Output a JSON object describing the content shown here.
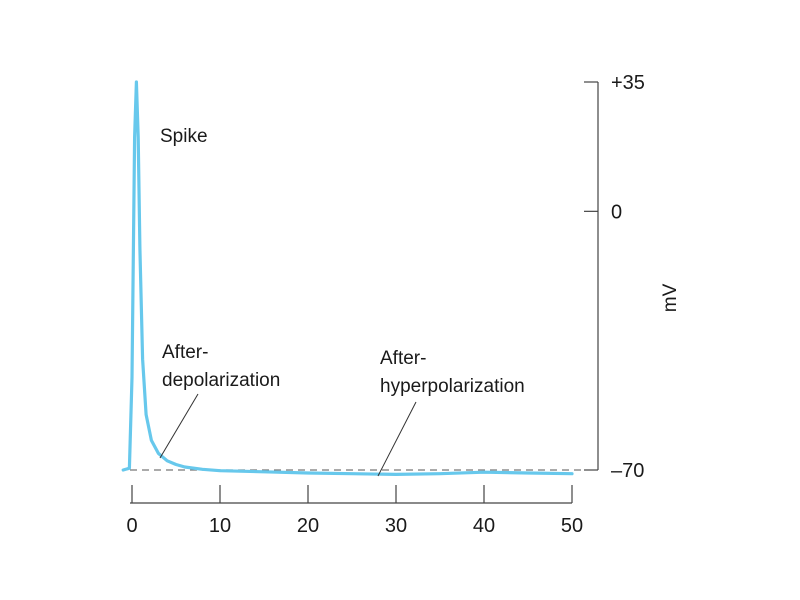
{
  "chart_data": {
    "type": "line",
    "title": "",
    "xlabel": "",
    "ylabel": "mV",
    "xlim": [
      0,
      50
    ],
    "ylim": [
      -70,
      35
    ],
    "x_ticks": [
      0,
      10,
      20,
      30,
      40,
      50
    ],
    "y_ticks": [
      {
        "value": 35,
        "label": "+35"
      },
      {
        "value": 0,
        "label": "0"
      },
      {
        "value": -70,
        "label": "–70"
      }
    ],
    "baseline": {
      "value": -70,
      "style": "dashed"
    },
    "series": [
      {
        "color": "#67c8ec",
        "x": [
          -1,
          -0.3,
          0,
          0.3,
          0.5,
          0.7,
          0.9,
          1.2,
          1.6,
          2.2,
          3,
          4,
          5,
          6,
          8,
          10,
          15,
          20,
          25,
          30,
          35,
          40,
          45,
          50
        ],
        "y": [
          -70,
          -69.5,
          -45,
          20,
          35,
          20,
          -10,
          -40,
          -55,
          -62,
          -65.5,
          -67.5,
          -68.5,
          -69.2,
          -69.8,
          -70.2,
          -70.5,
          -70.8,
          -71,
          -71.2,
          -71,
          -70.6,
          -70.8,
          -71
        ]
      }
    ],
    "annotations": [
      {
        "text": "Spike"
      },
      {
        "lines": [
          "After-",
          "depolarization"
        ]
      },
      {
        "lines": [
          "After-",
          "hyperpolarization"
        ]
      }
    ]
  }
}
